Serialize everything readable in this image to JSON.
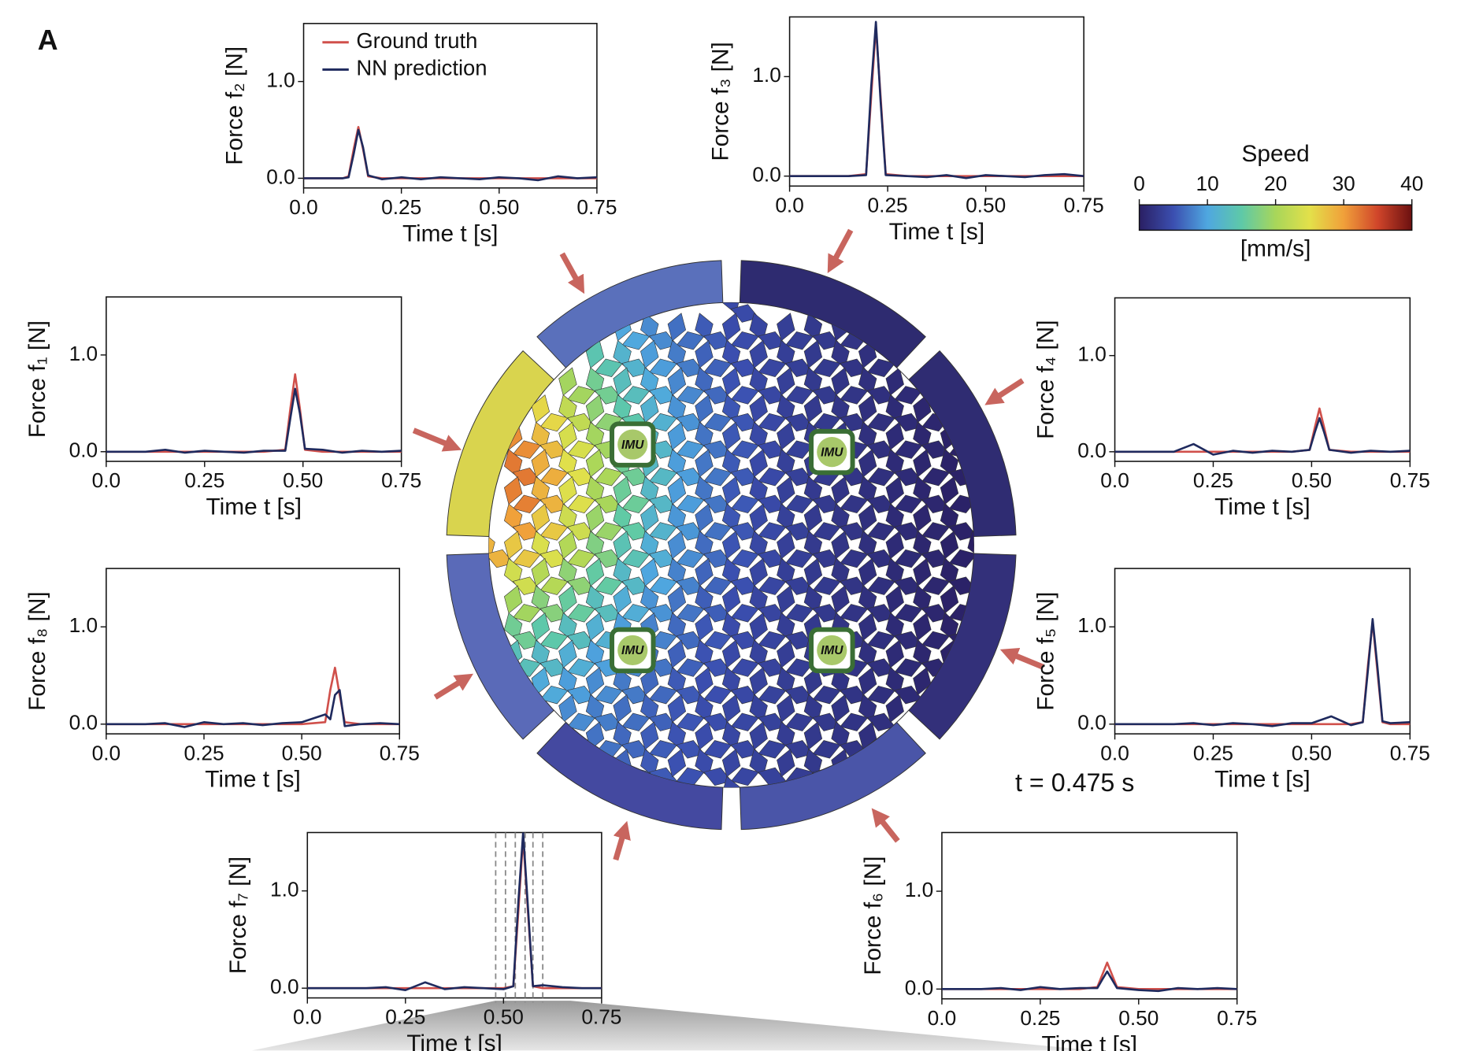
{
  "panel_label": "A",
  "time_label": "t = 0.475 s",
  "imu_labels": [
    "IMU",
    "IMU",
    "IMU",
    "IMU"
  ],
  "colorbar": {
    "title": "Speed",
    "unit": "[mm/s]",
    "lim": [
      0,
      40
    ],
    "ticks": [
      0,
      10,
      20,
      30,
      40
    ]
  },
  "chart_data": [
    {
      "type": "line",
      "ylabel": "Force f₂ [N]",
      "xlabel": "Time t [s]",
      "legend": "upper left",
      "xlim": [
        0,
        0.75
      ],
      "ylim": [
        -0.1,
        1.6
      ],
      "xticks": [
        {
          "value": 0,
          "label": "0.0"
        },
        0.25,
        {
          "value": 0.5,
          "label": "0.50"
        },
        0.75
      ],
      "yticks": [
        {
          "value": 0,
          "label": "0.0"
        },
        {
          "value": 1,
          "label": "1.0"
        }
      ],
      "x": [
        0,
        0.05,
        0.1,
        0.115,
        0.128,
        0.14,
        0.152,
        0.165,
        0.2,
        0.25,
        0.3,
        0.35,
        0.4,
        0.45,
        0.5,
        0.55,
        0.6,
        0.65,
        0.7,
        0.75
      ],
      "series": [
        {
          "name": "Ground truth",
          "color": "#d0504b",
          "values": [
            0,
            0,
            0,
            0.02,
            0.3,
            0.53,
            0.3,
            0.02,
            0,
            0,
            0,
            0,
            0,
            0,
            0,
            0,
            0,
            0,
            0,
            0
          ]
        },
        {
          "name": "NN prediction",
          "color": "#1f2a5e",
          "values": [
            0,
            0,
            0,
            0.01,
            0.25,
            0.5,
            0.32,
            0.03,
            -0.01,
            0.01,
            -0.01,
            0.01,
            0,
            -0.01,
            0.01,
            0,
            -0.02,
            0.02,
            0,
            0.01
          ]
        }
      ]
    },
    {
      "type": "line",
      "ylabel": "Force f₃ [N]",
      "xlabel": "Time t [s]",
      "xlim": [
        0,
        0.75
      ],
      "ylim": [
        -0.1,
        1.6
      ],
      "xticks": [
        {
          "value": 0,
          "label": "0.0"
        },
        0.25,
        {
          "value": 0.5,
          "label": "0.50"
        },
        0.75
      ],
      "yticks": [
        {
          "value": 0,
          "label": "0.0"
        },
        {
          "value": 1,
          "label": "1.0"
        }
      ],
      "x": [
        0,
        0.05,
        0.1,
        0.15,
        0.195,
        0.208,
        0.22,
        0.232,
        0.245,
        0.3,
        0.35,
        0.4,
        0.45,
        0.5,
        0.55,
        0.6,
        0.65,
        0.7,
        0.75
      ],
      "series": [
        {
          "name": "Ground truth",
          "color": "#d0504b",
          "values": [
            0,
            0,
            0,
            0,
            0.02,
            0.8,
            1.5,
            0.8,
            0.02,
            0,
            0,
            0,
            0,
            0,
            0,
            0,
            0,
            0,
            0
          ]
        },
        {
          "name": "NN prediction",
          "color": "#1f2a5e",
          "values": [
            0,
            0,
            0,
            0,
            0.01,
            0.9,
            1.55,
            0.75,
            0.01,
            0,
            -0.01,
            0.01,
            -0.02,
            0.01,
            0,
            -0.01,
            0.01,
            0.02,
            0
          ]
        }
      ]
    },
    {
      "type": "line",
      "ylabel": "Force f₁ [N]",
      "xlabel": "Time t [s]",
      "xlim": [
        0,
        0.75
      ],
      "ylim": [
        -0.1,
        1.6
      ],
      "xticks": [
        {
          "value": 0,
          "label": "0.0"
        },
        0.25,
        {
          "value": 0.5,
          "label": "0.50"
        },
        0.75
      ],
      "yticks": [
        {
          "value": 0,
          "label": "0.0"
        },
        {
          "value": 1,
          "label": "1.0"
        }
      ],
      "x": [
        0,
        0.05,
        0.1,
        0.15,
        0.2,
        0.25,
        0.3,
        0.35,
        0.4,
        0.455,
        0.468,
        0.48,
        0.492,
        0.505,
        0.55,
        0.6,
        0.65,
        0.7,
        0.75
      ],
      "series": [
        {
          "name": "Ground truth",
          "color": "#d0504b",
          "values": [
            0,
            0,
            0,
            0,
            0,
            0,
            0,
            0,
            0,
            0.02,
            0.45,
            0.8,
            0.45,
            0.02,
            0,
            0,
            0,
            0,
            0
          ]
        },
        {
          "name": "NN prediction",
          "color": "#1f2a5e",
          "values": [
            0,
            0,
            0,
            0.02,
            -0.01,
            0.01,
            0,
            -0.01,
            0.01,
            0.01,
            0.35,
            0.65,
            0.4,
            0.03,
            0.02,
            -0.01,
            0.01,
            0,
            0.01
          ]
        }
      ]
    },
    {
      "type": "line",
      "ylabel": "Force f₄ [N]",
      "xlabel": "Time t [s]",
      "xlim": [
        0,
        0.75
      ],
      "ylim": [
        -0.1,
        1.6
      ],
      "xticks": [
        {
          "value": 0,
          "label": "0.0"
        },
        0.25,
        {
          "value": 0.5,
          "label": "0.50"
        },
        0.75
      ],
      "yticks": [
        {
          "value": 0,
          "label": "0.0"
        },
        {
          "value": 1,
          "label": "1.0"
        }
      ],
      "x": [
        0,
        0.05,
        0.1,
        0.15,
        0.2,
        0.25,
        0.3,
        0.35,
        0.4,
        0.45,
        0.495,
        0.508,
        0.52,
        0.532,
        0.545,
        0.6,
        0.65,
        0.7,
        0.75
      ],
      "series": [
        {
          "name": "Ground truth",
          "color": "#d0504b",
          "values": [
            0,
            0,
            0,
            0,
            0,
            0,
            0,
            0,
            0,
            0,
            0.02,
            0.25,
            0.45,
            0.25,
            0.02,
            0,
            0,
            0,
            0
          ]
        },
        {
          "name": "NN prediction",
          "color": "#1f2a5e",
          "values": [
            0,
            0,
            0,
            0,
            0.08,
            -0.03,
            0.01,
            -0.01,
            0.01,
            0,
            0.02,
            0.2,
            0.35,
            0.2,
            0.02,
            -0.01,
            0.01,
            0,
            0.01
          ]
        }
      ]
    },
    {
      "type": "line",
      "ylabel": "Force f₈ [N]",
      "xlabel": "Time t [s]",
      "xlim": [
        0,
        0.75
      ],
      "ylim": [
        -0.1,
        1.6
      ],
      "xticks": [
        {
          "value": 0,
          "label": "0.0"
        },
        0.25,
        {
          "value": 0.5,
          "label": "0.50"
        },
        0.75
      ],
      "yticks": [
        {
          "value": 0,
          "label": "0.0"
        },
        {
          "value": 1,
          "label": "1.0"
        }
      ],
      "x": [
        0,
        0.05,
        0.1,
        0.15,
        0.2,
        0.25,
        0.3,
        0.35,
        0.4,
        0.45,
        0.5,
        0.56,
        0.573,
        0.585,
        0.597,
        0.61,
        0.65,
        0.7,
        0.75
      ],
      "series": [
        {
          "name": "Ground truth",
          "color": "#d0504b",
          "values": [
            0,
            0,
            0,
            0,
            0,
            0,
            0,
            0,
            0,
            0,
            0,
            0.02,
            0.35,
            0.58,
            0.3,
            0.02,
            0,
            0,
            0
          ]
        },
        {
          "name": "NN prediction",
          "color": "#1f2a5e",
          "values": [
            0,
            0,
            0,
            0.01,
            -0.03,
            0.02,
            0,
            0.01,
            -0.01,
            0.01,
            0.02,
            0.1,
            0.05,
            0.3,
            0.35,
            -0.02,
            0,
            0.01,
            0
          ]
        }
      ]
    },
    {
      "type": "line",
      "ylabel": "Force f₅ [N]",
      "xlabel": "Time t [s]",
      "xlim": [
        0,
        0.75
      ],
      "ylim": [
        -0.1,
        1.6
      ],
      "xticks": [
        {
          "value": 0,
          "label": "0.0"
        },
        0.25,
        {
          "value": 0.5,
          "label": "0.50"
        },
        0.75
      ],
      "yticks": [
        {
          "value": 0,
          "label": "0.0"
        },
        {
          "value": 1,
          "label": "1.0"
        }
      ],
      "x": [
        0,
        0.05,
        0.1,
        0.15,
        0.2,
        0.25,
        0.3,
        0.35,
        0.4,
        0.45,
        0.5,
        0.55,
        0.6,
        0.63,
        0.643,
        0.655,
        0.667,
        0.68,
        0.7,
        0.75
      ],
      "series": [
        {
          "name": "Ground truth",
          "color": "#d0504b",
          "values": [
            0,
            0,
            0,
            0,
            0,
            0,
            0,
            0,
            0,
            0,
            0,
            0,
            0,
            0.02,
            0.6,
            1.05,
            0.55,
            0.02,
            0,
            0
          ]
        },
        {
          "name": "NN prediction",
          "color": "#1f2a5e",
          "values": [
            0,
            0,
            0,
            0,
            0.01,
            -0.01,
            0.01,
            0,
            -0.02,
            0.01,
            0.01,
            0.08,
            -0.01,
            0.02,
            0.55,
            1.08,
            0.6,
            0.03,
            0.01,
            0.02
          ]
        }
      ]
    },
    {
      "type": "line",
      "ylabel": "Force f₇ [N]",
      "xlabel": "Time t [s]",
      "xlim": [
        0,
        0.75
      ],
      "ylim": [
        -0.1,
        1.6
      ],
      "xticks": [
        {
          "value": 0,
          "label": "0.0"
        },
        0.25,
        {
          "value": 0.5,
          "label": "0.50"
        },
        0.75
      ],
      "yticks": [
        {
          "value": 0,
          "label": "0.0"
        },
        {
          "value": 1,
          "label": "1.0"
        }
      ],
      "vlines": [
        0.48,
        0.505,
        0.53,
        0.555,
        0.575,
        0.6
      ],
      "x": [
        0,
        0.05,
        0.1,
        0.15,
        0.2,
        0.25,
        0.3,
        0.35,
        0.4,
        0.45,
        0.5,
        0.525,
        0.538,
        0.55,
        0.562,
        0.575,
        0.6,
        0.65,
        0.7,
        0.75
      ],
      "series": [
        {
          "name": "Ground truth",
          "color": "#d0504b",
          "values": [
            0,
            0,
            0,
            0,
            0,
            0,
            0,
            0,
            0,
            0,
            0,
            0.02,
            0.8,
            1.55,
            0.8,
            0.02,
            0,
            0,
            0,
            0
          ]
        },
        {
          "name": "NN prediction",
          "color": "#1f2a5e",
          "values": [
            0,
            0,
            0,
            0,
            0.01,
            -0.02,
            0.06,
            -0.01,
            0.01,
            0,
            -0.01,
            0.02,
            0.9,
            1.6,
            0.85,
            0.02,
            0.03,
            0.01,
            0,
            0
          ]
        }
      ]
    },
    {
      "type": "line",
      "ylabel": "Force f₆ [N]",
      "xlabel": "Time t [s]",
      "xlim": [
        0,
        0.75
      ],
      "ylim": [
        -0.1,
        1.6
      ],
      "xticks": [
        {
          "value": 0,
          "label": "0.0"
        },
        0.25,
        {
          "value": 0.5,
          "label": "0.50"
        },
        0.75
      ],
      "yticks": [
        {
          "value": 0,
          "label": "0.0"
        },
        {
          "value": 1,
          "label": "1.0"
        }
      ],
      "x": [
        0,
        0.05,
        0.1,
        0.15,
        0.2,
        0.25,
        0.3,
        0.35,
        0.395,
        0.408,
        0.42,
        0.432,
        0.445,
        0.5,
        0.55,
        0.6,
        0.65,
        0.7,
        0.75
      ],
      "series": [
        {
          "name": "Ground truth",
          "color": "#d0504b",
          "values": [
            0,
            0,
            0,
            0,
            0,
            0,
            0,
            0,
            0.02,
            0.15,
            0.27,
            0.15,
            0.02,
            0,
            0,
            0,
            0,
            0,
            0
          ]
        },
        {
          "name": "NN prediction",
          "color": "#1f2a5e",
          "values": [
            0,
            0,
            0,
            0.01,
            -0.01,
            0.02,
            0,
            0.01,
            0.01,
            0.1,
            0.18,
            0.1,
            0.01,
            -0.01,
            -0.02,
            0.01,
            0,
            0.01,
            0
          ]
        }
      ]
    }
  ]
}
